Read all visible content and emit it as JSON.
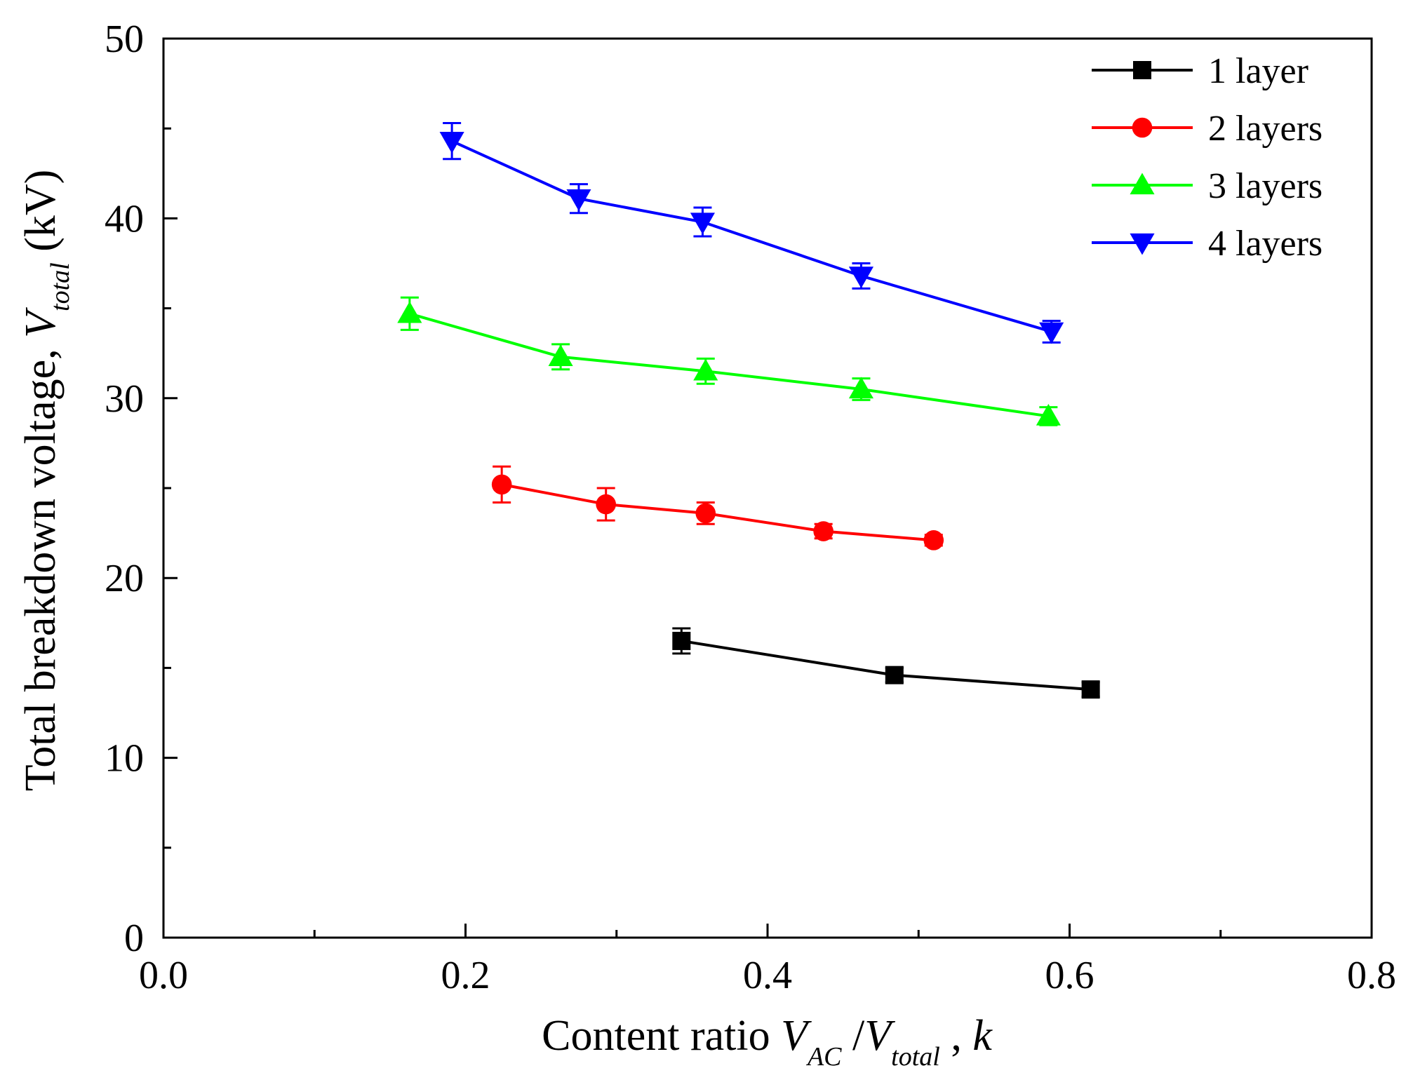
{
  "chart_data": {
    "type": "line",
    "title": "",
    "xlabel": {
      "prefix": "Content ratio ",
      "v1": "V",
      "v1_sub": "AC",
      "slash": " /",
      "v2": "V",
      "v2_sub": "total",
      "suffix_sep": " , ",
      "suffix": "k"
    },
    "ylabel": {
      "prefix": "Total breakdown voltage, ",
      "v": "V",
      "v_sub": "total",
      "unit": " (kV)"
    },
    "xlim": [
      0.0,
      0.8
    ],
    "ylim": [
      0,
      50
    ],
    "x_ticks": [
      0.0,
      0.2,
      0.4,
      0.6,
      0.8
    ],
    "x_tick_labels": [
      "0.0",
      "0.2",
      "0.4",
      "0.6",
      "0.8"
    ],
    "x_minor_ticks": [
      0.1,
      0.3,
      0.5,
      0.7
    ],
    "y_ticks": [
      0,
      10,
      20,
      30,
      40,
      50
    ],
    "y_tick_labels": [
      "0",
      "10",
      "20",
      "30",
      "40",
      "50"
    ],
    "y_minor_ticks": [
      5,
      15,
      25,
      35,
      45
    ],
    "grid": false,
    "legend_position": "top-right",
    "series": [
      {
        "name": "1 layer",
        "color": "#000000",
        "marker": "square",
        "x": [
          0.343,
          0.484,
          0.614
        ],
        "y": [
          16.5,
          14.6,
          13.8
        ],
        "err": [
          0.7,
          0.4,
          0.4
        ]
      },
      {
        "name": "2 layers",
        "color": "#ff0000",
        "marker": "circle",
        "x": [
          0.224,
          0.293,
          0.359,
          0.437,
          0.51
        ],
        "y": [
          25.2,
          24.1,
          23.6,
          22.6,
          22.1
        ],
        "err": [
          1.0,
          0.9,
          0.6,
          0.4,
          0.3
        ]
      },
      {
        "name": "3 layers",
        "color": "#00ff00",
        "marker": "triangle-up",
        "x": [
          0.163,
          0.263,
          0.359,
          0.462,
          0.586
        ],
        "y": [
          34.7,
          32.3,
          31.5,
          30.5,
          29.0
        ],
        "err": [
          0.9,
          0.7,
          0.7,
          0.6,
          0.5
        ]
      },
      {
        "name": "4 layers",
        "color": "#0000ff",
        "marker": "triangle-down",
        "x": [
          0.191,
          0.275,
          0.357,
          0.462,
          0.588
        ],
        "y": [
          44.3,
          41.1,
          39.8,
          36.8,
          33.7
        ],
        "err": [
          1.0,
          0.8,
          0.8,
          0.7,
          0.6
        ]
      }
    ]
  }
}
